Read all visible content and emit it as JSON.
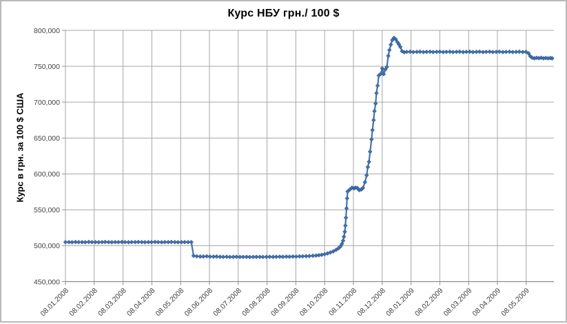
{
  "chart_data": {
    "type": "line",
    "title": "Курс НБУ грн./ 100 $",
    "ylabel": "Курс в грн. за 100 $ США",
    "xlabel": "",
    "grid": true,
    "legend": "none",
    "ylim": [
      450000,
      800000
    ],
    "y_ticks": [
      450000,
      500000,
      550000,
      600000,
      650000,
      700000,
      750000,
      800000
    ],
    "y_tick_labels": [
      "450,000",
      "500,000",
      "550,000",
      "600,000",
      "650,000",
      "700,000",
      "750,000",
      "800,000"
    ],
    "x_tick_labels": [
      "08.01.2008",
      "08.02.2008",
      "08.03.2008",
      "08.04.2008",
      "08.05.2008",
      "08.06.2008",
      "08.07.2008",
      "08.08.2008",
      "08.09.2008",
      "08.10.2008",
      "08.11.2008",
      "08.12.2008",
      "08.01.2009",
      "08.02.2009",
      "08.03.2009",
      "08.04.2009",
      "08.05.2009"
    ],
    "x_unit": "months since 08.01.2008",
    "colors": {
      "grid": "#a6a6a6",
      "axis": "#8c8c8c",
      "text": "#404040"
    },
    "series": [
      {
        "name": "Курс НБУ",
        "color": "#4472ad",
        "marker": "diamond",
        "marker_edge": "#2f5a94",
        "points": [
          [
            0.0,
            505000
          ],
          [
            0.12,
            505000
          ],
          [
            0.23,
            504800
          ],
          [
            0.35,
            505200
          ],
          [
            0.46,
            505000
          ],
          [
            0.58,
            505000
          ],
          [
            0.69,
            504800
          ],
          [
            0.81,
            505200
          ],
          [
            0.92,
            505000
          ],
          [
            1.04,
            505000
          ],
          [
            1.15,
            504800
          ],
          [
            1.27,
            505000
          ],
          [
            1.38,
            505200
          ],
          [
            1.5,
            505000
          ],
          [
            1.61,
            504800
          ],
          [
            1.73,
            505000
          ],
          [
            1.84,
            505000
          ],
          [
            1.96,
            505200
          ],
          [
            2.07,
            505000
          ],
          [
            2.19,
            504800
          ],
          [
            2.3,
            505000
          ],
          [
            2.42,
            505000
          ],
          [
            2.53,
            505200
          ],
          [
            2.65,
            505000
          ],
          [
            2.76,
            504800
          ],
          [
            2.88,
            505000
          ],
          [
            2.99,
            505000
          ],
          [
            3.11,
            505200
          ],
          [
            3.22,
            505000
          ],
          [
            3.34,
            504800
          ],
          [
            3.45,
            505000
          ],
          [
            3.57,
            505000
          ],
          [
            3.68,
            505200
          ],
          [
            3.8,
            505000
          ],
          [
            3.91,
            504800
          ],
          [
            4.03,
            505000
          ],
          [
            4.14,
            505000
          ],
          [
            4.26,
            505000
          ],
          [
            4.37,
            505000
          ],
          [
            4.45,
            486000
          ],
          [
            4.56,
            485200
          ],
          [
            4.68,
            485000
          ],
          [
            4.79,
            485000
          ],
          [
            4.91,
            485300
          ],
          [
            5.02,
            484800
          ],
          [
            5.14,
            484800
          ],
          [
            5.25,
            485000
          ],
          [
            5.37,
            484600
          ],
          [
            5.48,
            484500
          ],
          [
            5.6,
            484600
          ],
          [
            5.71,
            484400
          ],
          [
            5.83,
            484500
          ],
          [
            5.94,
            484600
          ],
          [
            6.06,
            484400
          ],
          [
            6.17,
            484500
          ],
          [
            6.29,
            484500
          ],
          [
            6.4,
            484300
          ],
          [
            6.52,
            484400
          ],
          [
            6.63,
            484500
          ],
          [
            6.75,
            484500
          ],
          [
            6.86,
            484400
          ],
          [
            6.98,
            484500
          ],
          [
            7.09,
            484600
          ],
          [
            7.21,
            484500
          ],
          [
            7.32,
            484600
          ],
          [
            7.44,
            484700
          ],
          [
            7.55,
            484600
          ],
          [
            7.67,
            484800
          ],
          [
            7.78,
            484700
          ],
          [
            7.9,
            485000
          ],
          [
            8.01,
            484900
          ],
          [
            8.13,
            485100
          ],
          [
            8.24,
            485200
          ],
          [
            8.36,
            485400
          ],
          [
            8.47,
            485600
          ],
          [
            8.59,
            486000
          ],
          [
            8.7,
            486300
          ],
          [
            8.8,
            486800
          ],
          [
            8.9,
            487400
          ],
          [
            9.0,
            488200
          ],
          [
            9.1,
            489300
          ],
          [
            9.2,
            490600
          ],
          [
            9.3,
            492200
          ],
          [
            9.4,
            494300
          ],
          [
            9.48,
            496500
          ],
          [
            9.55,
            499000
          ],
          [
            9.6,
            502500
          ],
          [
            9.64,
            507000
          ],
          [
            9.67,
            512500
          ],
          [
            9.7,
            519500
          ],
          [
            9.72,
            528000
          ],
          [
            9.74,
            539000
          ],
          [
            9.76,
            552000
          ],
          [
            9.78,
            566000
          ],
          [
            9.8,
            575500
          ],
          [
            9.88,
            578500
          ],
          [
            9.95,
            580800
          ],
          [
            10.02,
            579800
          ],
          [
            10.08,
            580900
          ],
          [
            10.14,
            580200
          ],
          [
            10.2,
            577400
          ],
          [
            10.27,
            578300
          ],
          [
            10.33,
            580500
          ],
          [
            10.4,
            588500
          ],
          [
            10.46,
            598000
          ],
          [
            10.5,
            609500
          ],
          [
            10.54,
            617000
          ],
          [
            10.58,
            631000
          ],
          [
            10.63,
            648000
          ],
          [
            10.66,
            661000
          ],
          [
            10.7,
            675000
          ],
          [
            10.73,
            687500
          ],
          [
            10.77,
            698000
          ],
          [
            10.8,
            712500
          ],
          [
            10.84,
            723000
          ],
          [
            10.88,
            737000
          ],
          [
            10.95,
            739500
          ],
          [
            11.0,
            747000
          ],
          [
            11.05,
            739000
          ],
          [
            11.11,
            745500
          ],
          [
            11.16,
            749000
          ],
          [
            11.21,
            764500
          ],
          [
            11.25,
            772500
          ],
          [
            11.3,
            780000
          ],
          [
            11.35,
            786500
          ],
          [
            11.41,
            789500
          ],
          [
            11.47,
            787500
          ],
          [
            11.53,
            783500
          ],
          [
            11.58,
            780500
          ],
          [
            11.63,
            777000
          ],
          [
            11.69,
            771000
          ],
          [
            11.76,
            769500
          ],
          [
            11.85,
            770000
          ],
          [
            11.97,
            770200
          ],
          [
            12.08,
            769800
          ],
          [
            12.2,
            770000
          ],
          [
            12.31,
            770200
          ],
          [
            12.43,
            769800
          ],
          [
            12.54,
            770000
          ],
          [
            12.66,
            770200
          ],
          [
            12.77,
            769800
          ],
          [
            12.89,
            770000
          ],
          [
            13.0,
            770200
          ],
          [
            13.12,
            769800
          ],
          [
            13.23,
            770000
          ],
          [
            13.35,
            770200
          ],
          [
            13.46,
            769800
          ],
          [
            13.58,
            770000
          ],
          [
            13.69,
            770200
          ],
          [
            13.81,
            769800
          ],
          [
            13.92,
            770000
          ],
          [
            14.04,
            770200
          ],
          [
            14.15,
            769800
          ],
          [
            14.27,
            770000
          ],
          [
            14.38,
            770200
          ],
          [
            14.5,
            769800
          ],
          [
            14.61,
            770000
          ],
          [
            14.73,
            770200
          ],
          [
            14.84,
            769800
          ],
          [
            14.96,
            770000
          ],
          [
            15.07,
            770200
          ],
          [
            15.19,
            769800
          ],
          [
            15.3,
            770000
          ],
          [
            15.42,
            770200
          ],
          [
            15.53,
            769800
          ],
          [
            15.65,
            770000
          ],
          [
            15.76,
            770200
          ],
          [
            15.88,
            769800
          ],
          [
            15.99,
            770000
          ],
          [
            16.08,
            768000
          ],
          [
            16.14,
            764000
          ],
          [
            16.2,
            762000
          ],
          [
            16.28,
            761000
          ],
          [
            16.36,
            761800
          ],
          [
            16.44,
            761200
          ],
          [
            16.52,
            761800
          ],
          [
            16.6,
            761000
          ],
          [
            16.68,
            761500
          ],
          [
            16.76,
            761000
          ],
          [
            16.84,
            761500
          ],
          [
            16.9,
            761000
          ]
        ]
      }
    ]
  }
}
